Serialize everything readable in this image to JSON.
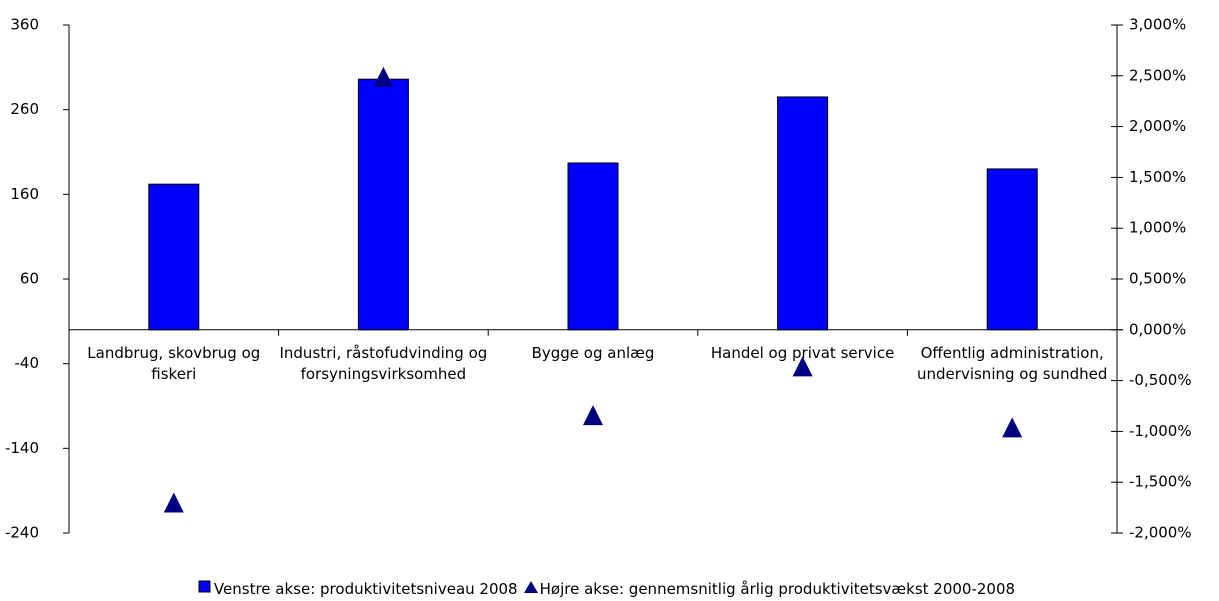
{
  "chart_data": {
    "type": "bar",
    "categories": [
      "Landbrug, skovbrug og fiskeri",
      "Industri, råstofudvinding og forsyningsvirksomhed",
      "Bygge og anlæg",
      "Handel og privat service",
      "Offentlig administration, undervisning og sundhed"
    ],
    "series": [
      {
        "name": "Venstre akse: produktivitetsniveau 2008",
        "type": "bar",
        "color": "#0000ff",
        "values": [
          172,
          296,
          197,
          275,
          190
        ]
      },
      {
        "name": "Højre akse: gennemsnitlig årlig produktivitetsvækst 2000-2008",
        "type": "scatter",
        "marker": "triangle",
        "color": "#000080",
        "axis": "y2",
        "values": [
          -1.71,
          2.48,
          -0.85,
          -0.37,
          -0.97
        ]
      }
    ],
    "ylim": [
      -240,
      360
    ],
    "yticks": [
      360,
      260,
      160,
      60,
      -40,
      -140,
      -240
    ],
    "y2lim": [
      -2,
      3
    ],
    "y2ticks": [
      {
        "value": 3,
        "label": "3,000%"
      },
      {
        "value": 2.5,
        "label": "2,500%"
      },
      {
        "value": 2,
        "label": "2,000%"
      },
      {
        "value": 1.5,
        "label": "1,500%"
      },
      {
        "value": 1,
        "label": "1,000%"
      },
      {
        "value": 0.5,
        "label": "0,500%"
      },
      {
        "value": 0,
        "label": "0,000%"
      },
      {
        "value": -0.5,
        "label": "-0,500%"
      },
      {
        "value": -1,
        "label": "-1,000%"
      },
      {
        "value": -1.5,
        "label": "-1,500%"
      },
      {
        "value": -2,
        "label": "-2,000%"
      }
    ],
    "grid": false,
    "legend": "bottom"
  }
}
